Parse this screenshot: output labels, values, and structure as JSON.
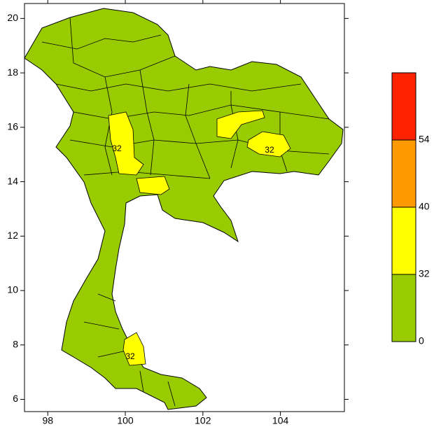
{
  "map": {
    "xlim": [
      97.4,
      105.65
    ],
    "ylim": [
      5.55,
      20.55
    ],
    "xticks": [
      98,
      100,
      102,
      104
    ],
    "yticks": [
      6,
      8,
      10,
      12,
      14,
      16,
      18,
      20
    ],
    "land_color": "#99cc00",
    "contour_color": "#ffff00",
    "contour_labels": [
      "32",
      "32",
      "32"
    ],
    "colorbar": {
      "levels": [
        0,
        32,
        40,
        54
      ],
      "colors": [
        "#99cc00",
        "#ffff00",
        "#ff9900",
        "#ff2200"
      ]
    }
  }
}
